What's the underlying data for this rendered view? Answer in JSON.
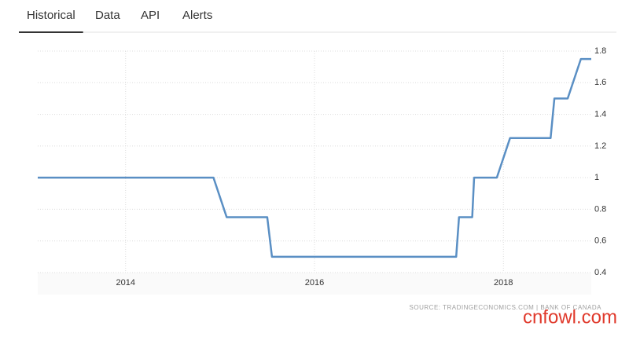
{
  "tabs": [
    "Historical",
    "Data",
    "API",
    "Alerts"
  ],
  "active_tab": 0,
  "chart_data": {
    "type": "line",
    "x": [
      2013.07,
      2014.93,
      2015.07,
      2015.5,
      2015.55,
      2017.5,
      2017.53,
      2017.67,
      2017.69,
      2017.93,
      2018.07,
      2018.5,
      2018.54,
      2018.68,
      2018.82,
      2018.93
    ],
    "values": [
      1,
      1,
      0.75,
      0.75,
      0.5,
      0.5,
      0.75,
      0.75,
      1,
      1,
      1.25,
      1.25,
      1.5,
      1.5,
      1.75,
      1.75
    ],
    "color": "#5a8fc4",
    "xlim": [
      2013.07,
      2018.93
    ],
    "xticks": [
      2014,
      2016,
      2018
    ],
    "ylim": [
      0.4,
      1.8
    ],
    "yticks": [
      0.4,
      0.6,
      0.8,
      1,
      1.2,
      1.4,
      1.6,
      1.8
    ],
    "grid": true,
    "source": "SOURCE: TRADINGECONOMICS.COM | BANK OF CANADA"
  },
  "watermark": "cnfowl.com"
}
